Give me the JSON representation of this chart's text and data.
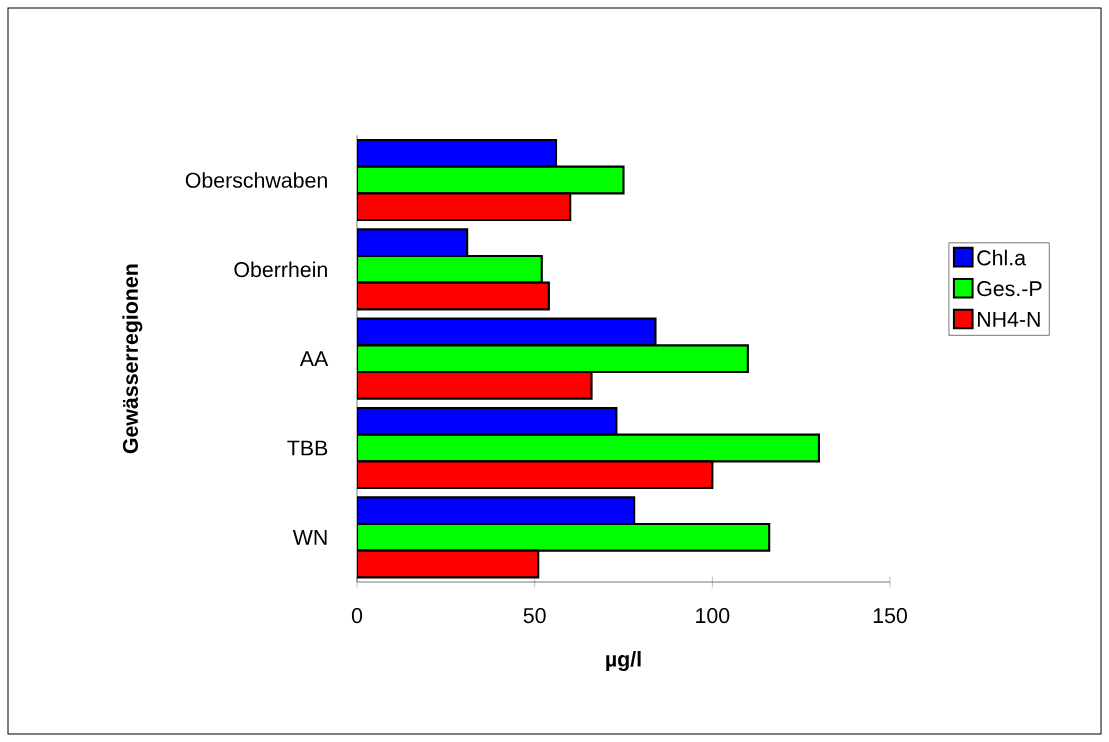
{
  "chart_data": {
    "type": "bar",
    "orientation": "horizontal",
    "xlabel": "µg/l",
    "ylabel": "Gewässerregionen",
    "categories": [
      "Oberschwaben",
      "Oberrhein",
      "AA",
      "TBB",
      "WN"
    ],
    "series": [
      {
        "name": "Chl.a",
        "color": "#0000ff",
        "values": [
          56,
          31,
          84,
          73,
          78
        ]
      },
      {
        "name": "Ges.-P",
        "color": "#00ff00",
        "values": [
          75,
          52,
          110,
          130,
          116
        ]
      },
      {
        "name": "NH4-N",
        "color": "#ff0000",
        "values": [
          60,
          54,
          66,
          100,
          51
        ]
      }
    ],
    "xlim": [
      0,
      150
    ],
    "xticks": [
      0,
      50,
      100,
      150
    ],
    "legend": "right"
  }
}
